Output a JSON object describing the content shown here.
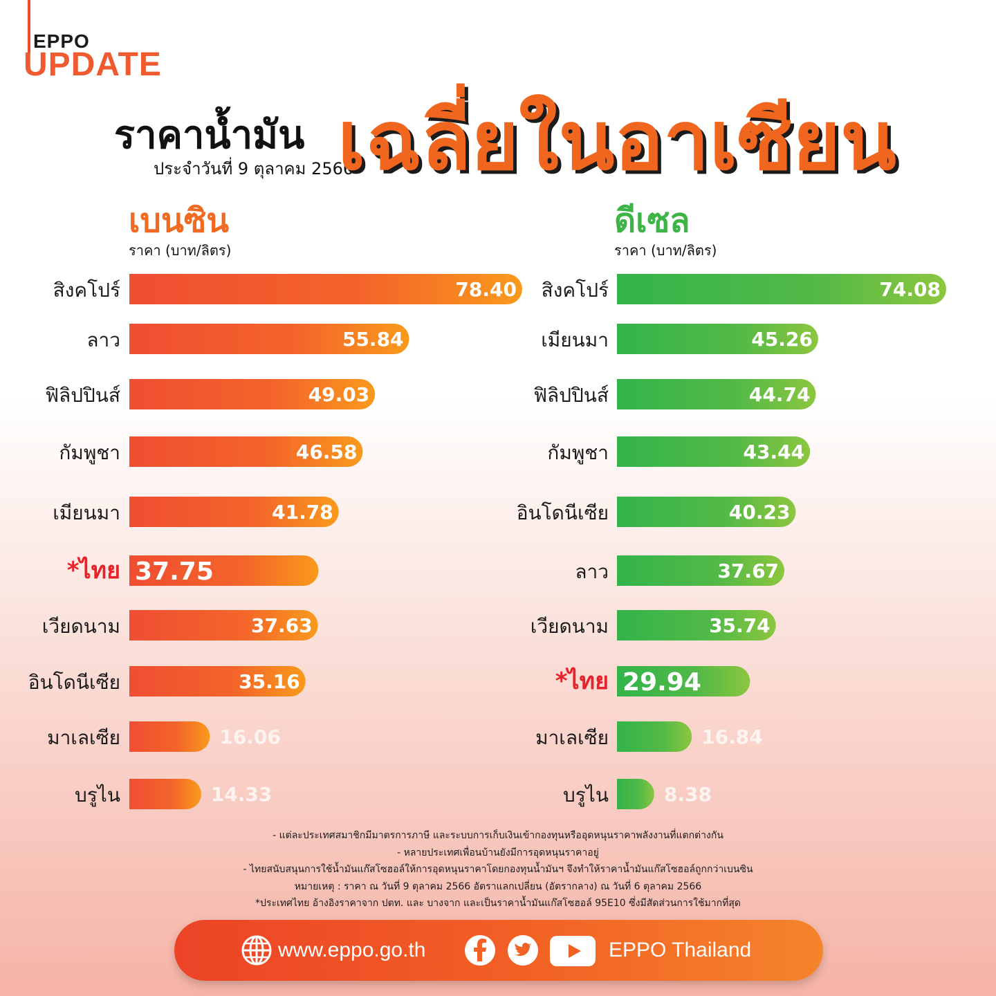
{
  "brand": {
    "line1": "EPPO",
    "line2": "UPDATE"
  },
  "title": {
    "main": "ราคาน้ำมัน",
    "date": "ประจำวันที่ 9 ตุลาคม 2566",
    "accent": "เฉลี่ยในอาเซียน"
  },
  "colors": {
    "benzin_bar_start": "#f04e32",
    "benzin_bar_end": "#f99a1c",
    "diesel_bar_start": "#33b44a",
    "diesel_bar_end": "#8cc63f",
    "thai_label": "#e8222a",
    "accent_orange": "#f0661f"
  },
  "chart_data": [
    {
      "type": "bar",
      "orientation": "horizontal",
      "title": "เบนซิน",
      "ylabel": "ราคา (บาท/ลิตร)",
      "categories": [
        "สิงคโปร์",
        "ลาว",
        "ฟิลิปปินส์",
        "กัมพูชา",
        "เมียนมา",
        "*ไทย",
        "เวียดนาม",
        "อินโดนีเซีย",
        "มาเลเซีย",
        "บรูไน"
      ],
      "values": [
        78.4,
        55.84,
        49.03,
        46.58,
        41.78,
        37.75,
        37.63,
        35.16,
        16.06,
        14.33
      ],
      "value_labels": [
        "78.40",
        "55.84",
        "49.03",
        "46.58",
        "41.78",
        "37.75",
        "37.63",
        "35.16",
        "16.06",
        "14.33"
      ],
      "highlight": "*ไทย",
      "xlim": [
        0,
        80
      ]
    },
    {
      "type": "bar",
      "orientation": "horizontal",
      "title": "ดีเซล",
      "ylabel": "ราคา (บาท/ลิตร)",
      "categories": [
        "สิงคโปร์",
        "เมียนมา",
        "ฟิลิปปินส์",
        "กัมพูชา",
        "อินโดนีเซีย",
        "ลาว",
        "เวียดนาม",
        "*ไทย",
        "มาเลเซีย",
        "บรูไน"
      ],
      "values": [
        74.08,
        45.26,
        44.74,
        43.44,
        40.23,
        37.67,
        35.74,
        29.94,
        16.84,
        8.38
      ],
      "value_labels": [
        "74.08",
        "45.26",
        "44.74",
        "43.44",
        "40.23",
        "37.67",
        "35.74",
        "29.94",
        "16.84",
        "8.38"
      ],
      "highlight": "*ไทย",
      "xlim": [
        0,
        76
      ]
    }
  ],
  "notes": [
    "- แต่ละประเทศสมาชิกมีมาตรการภาษี และระบบการเก็บเงินเข้ากองทุนหรืออุดหนุนราคาพลังงานที่แตกต่างกัน",
    "- หลายประเทศเพื่อนบ้านยังมีการอุดหนุนราคาอยู่",
    "- ไทยสนับสนุนการใช้น้ำมันแก๊สโซฮอล์ให้การอุดหนุนราคาโดยกองทุนน้ำมันฯ จึงทำให้ราคาน้ำมันแก๊สโซฮอล์ถูกกว่าเบนซิน",
    "หมายเหตุ :  ราคา ณ วันที่ 9 ตุลาคม 2566 อัตราแลกเปลี่ยน (อัตรากลาง) ณ วันที่ 6 ตุลาคม 2566",
    "*ประเทศไทย อ้างอิงราคาจาก ปตท. และ บางจาก และเป็นราคาน้ำมันแก๊สโซฮอล์ 95E10 ซึ่งมีสัดส่วนการใช้มากที่สุด"
  ],
  "footer": {
    "url": "www.eppo.go.th",
    "handle": "EPPO Thailand",
    "icons": [
      "globe-icon",
      "facebook-icon",
      "twitter-icon",
      "youtube-icon"
    ]
  }
}
